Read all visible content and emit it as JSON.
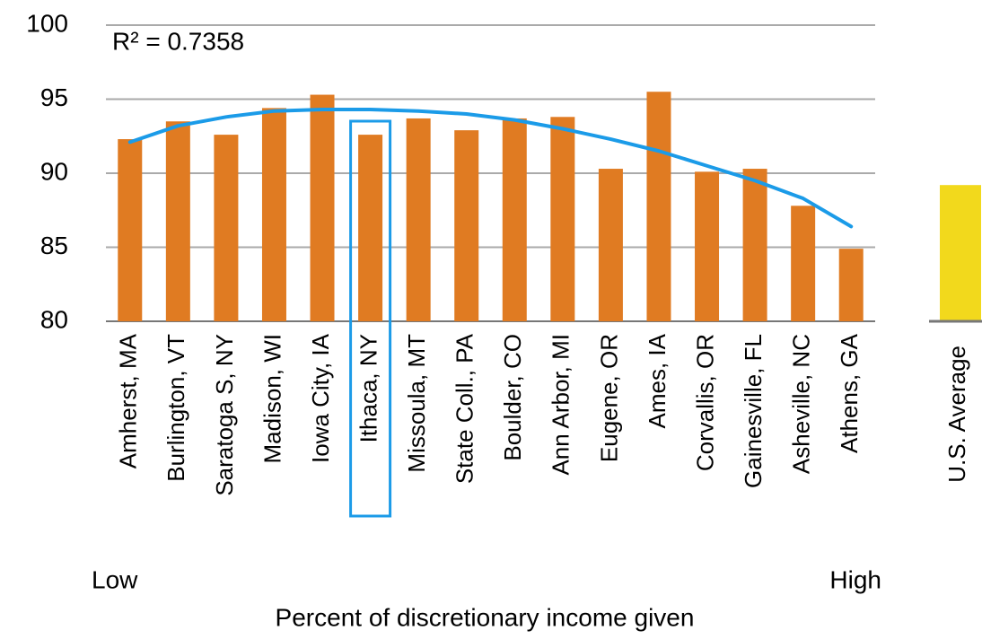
{
  "chart_data": {
    "type": "bar",
    "categories": [
      "Amherst, MA",
      "Burlington, VT",
      "Saratoga S, NY",
      "Madison, WI",
      "Iowa City, IA",
      "Ithaca, NY",
      "Missoula, MT",
      "State Coll., PA",
      "Boulder, CO",
      "Ann Arbor, MI",
      "Eugene, OR",
      "Ames, IA",
      "Corvallis, OR",
      "Gainesville, FL",
      "Asheville, NC",
      "Athens, GA"
    ],
    "values": [
      92.3,
      93.5,
      92.6,
      94.4,
      95.3,
      92.6,
      93.7,
      92.9,
      93.7,
      93.8,
      90.3,
      95.5,
      90.1,
      90.3,
      87.8,
      84.9
    ],
    "color": "#e07b22",
    "ylim": [
      80,
      100
    ],
    "yticks": [
      80,
      85,
      90,
      95,
      100
    ],
    "grid": true,
    "x_label": "Percent of discretionary income given",
    "x_low_label": "Low",
    "x_high_label": "High",
    "trendline": {
      "values": [
        92.1,
        93.2,
        93.8,
        94.2,
        94.3,
        94.3,
        94.2,
        94.0,
        93.6,
        93.0,
        92.3,
        91.5,
        90.5,
        89.5,
        88.3,
        86.4
      ],
      "color": "#1b9be8",
      "annotation": "R² = 0.7358"
    },
    "reference": {
      "label": "U.S. Average",
      "value": 89.2,
      "color": "#f2d91c"
    }
  }
}
